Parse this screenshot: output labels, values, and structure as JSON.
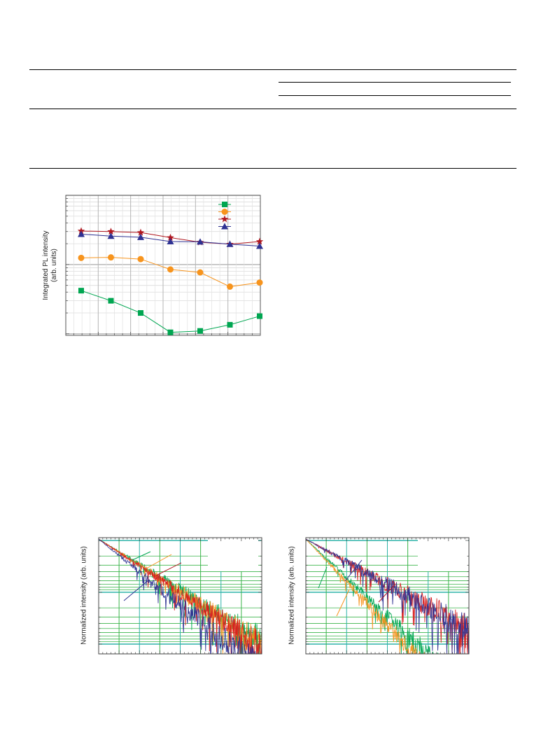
{
  "chart_data": [
    {
      "type": "scatter",
      "ylabel_line1": "Integrated PL intensity",
      "ylabel_line2": "(arb. units)",
      "grid": true,
      "legend_placement": "top-right",
      "x": [
        1,
        2,
        3,
        4,
        5,
        6,
        7
      ],
      "series": [
        {
          "color": "#00a651",
          "marker": "square",
          "values": [
            0.42,
            0.3,
            0.2,
            0.105,
            0.11,
            0.135,
            0.18
          ]
        },
        {
          "color": "#f7941d",
          "marker": "circle",
          "values": [
            1.25,
            1.27,
            1.2,
            0.85,
            0.77,
            0.48,
            0.55
          ]
        },
        {
          "color": "#b0171f",
          "marker": "star",
          "values": [
            3.05,
            3.0,
            2.9,
            2.45,
            2.1,
            1.97,
            2.15
          ]
        },
        {
          "color": "#2e3192",
          "marker": "triangle",
          "values": [
            2.75,
            2.58,
            2.48,
            2.15,
            2.13,
            1.97,
            1.85
          ]
        }
      ]
    },
    {
      "type": "line",
      "ylabel": "Normalized intensity (arb. units)",
      "grid": true,
      "log_y": true,
      "series": [
        {
          "color": "#00a651",
          "decay": 0.62,
          "noise": 0.35,
          "seed": 11
        },
        {
          "color": "#f7941d",
          "decay": 0.64,
          "noise": 0.35,
          "seed": 23
        },
        {
          "color": "#d81e1e",
          "decay": 0.66,
          "noise": 0.38,
          "seed": 37
        },
        {
          "color": "#2e3192",
          "decay": 0.8,
          "noise": 0.45,
          "seed": 51
        }
      ]
    },
    {
      "type": "line",
      "ylabel": "Normalized intensity (arb. units)",
      "grid": true,
      "log_y": true,
      "series": [
        {
          "color": "#00a651",
          "decay": 0.95,
          "noise": 0.4,
          "seed": 7
        },
        {
          "color": "#f7941d",
          "decay": 1.05,
          "noise": 0.4,
          "seed": 19
        },
        {
          "color": "#d81e1e",
          "decay": 0.55,
          "noise": 0.4,
          "seed": 29
        },
        {
          "color": "#2e3192",
          "decay": 0.55,
          "noise": 0.4,
          "seed": 43
        }
      ]
    }
  ]
}
